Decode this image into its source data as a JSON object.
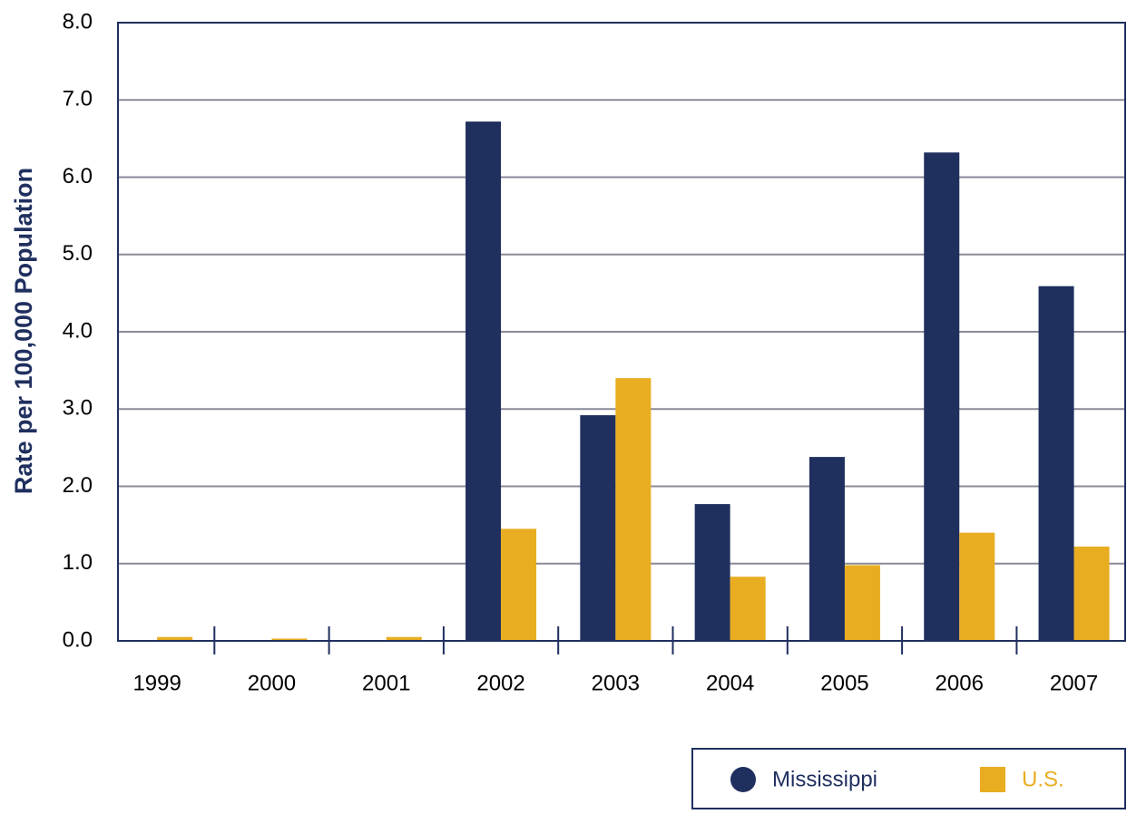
{
  "chart_data": {
    "type": "bar",
    "y_label": "Rate per 100,000 Population",
    "categories": [
      "1999",
      "2000",
      "2001",
      "2002",
      "2003",
      "2004",
      "2005",
      "2006",
      "2007"
    ],
    "series": [
      {
        "name": "Mississippi",
        "color": "#1f2f5e",
        "values": [
          0,
          0,
          0,
          6.72,
          2.92,
          1.77,
          2.38,
          6.32,
          4.59
        ]
      },
      {
        "name": "U.S.",
        "color": "#e9ad22",
        "values": [
          0.05,
          0.03,
          0.05,
          1.45,
          3.4,
          0.83,
          0.98,
          1.4,
          1.22
        ]
      }
    ],
    "ylim": [
      0,
      8
    ],
    "yticks": [
      {
        "value": 0,
        "label": "0.0"
      },
      {
        "value": 1,
        "label": "1.0"
      },
      {
        "value": 2,
        "label": "2.0"
      },
      {
        "value": 3,
        "label": "3.0"
      },
      {
        "value": 4,
        "label": "4.0"
      },
      {
        "value": 5,
        "label": "5.0"
      },
      {
        "value": 6,
        "label": "6.0"
      },
      {
        "value": 7,
        "label": "7.0"
      },
      {
        "value": 8,
        "label": "8.0"
      }
    ],
    "grid": true
  }
}
